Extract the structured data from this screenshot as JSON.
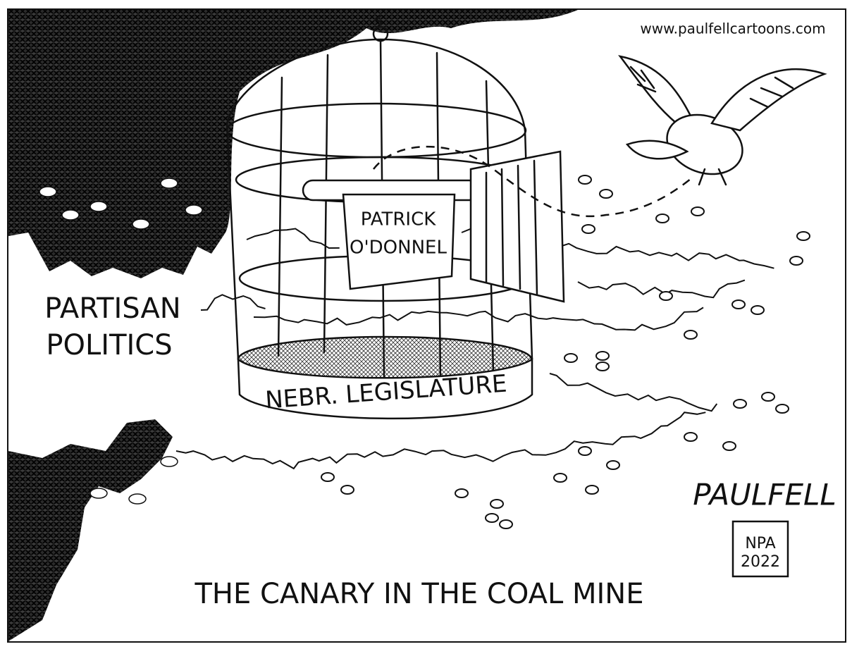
{
  "website": "www.paulfellcartoons.com",
  "label": {
    "lines": [
      "PARTISAN",
      "POLITICS"
    ]
  },
  "sign": {
    "lines": [
      "PATRICK",
      "O'DONNEL"
    ]
  },
  "cage_band": "NEBR. LEGISLATURE",
  "signature": "PAULFELL",
  "stamp": {
    "lines": [
      "NPA",
      "2022"
    ]
  },
  "caption": "THE CANARY IN THE COAL MINE"
}
